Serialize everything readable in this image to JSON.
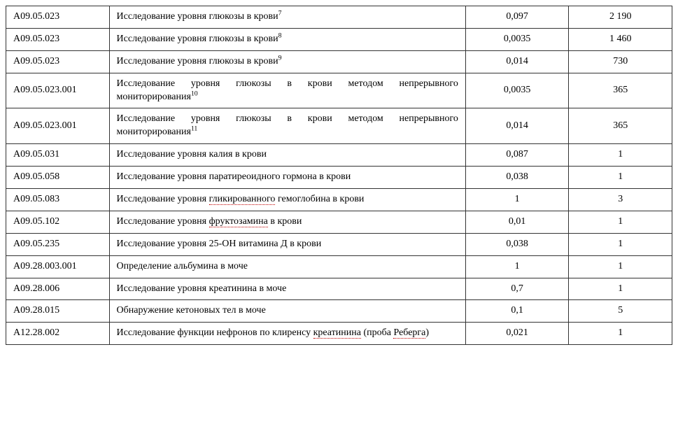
{
  "table": {
    "border_color": "#333333",
    "background_color": "#ffffff",
    "text_color": "#000000",
    "spell_underline_color": "#c00000",
    "font_family": "Times New Roman",
    "font_size_pt": 11,
    "column_widths_pct": [
      15.5,
      53.5,
      15.5,
      15.5
    ],
    "column_align": [
      "left",
      "left",
      "center",
      "center"
    ],
    "rows": [
      {
        "code": "A09.05.023",
        "desc_parts": [
          {
            "t": "Исследование уровня глюкозы в крови"
          },
          {
            "t": "7",
            "sup": true
          }
        ],
        "v1": "0,097",
        "v2": "2 190"
      },
      {
        "code": "A09.05.023",
        "desc_parts": [
          {
            "t": "Исследование уровня глюкозы в крови"
          },
          {
            "t": "8",
            "sup": true
          }
        ],
        "v1": "0,0035",
        "v2": "1 460"
      },
      {
        "code": "A09.05.023",
        "desc_parts": [
          {
            "t": "Исследование уровня глюкозы в крови"
          },
          {
            "t": "9",
            "sup": true
          }
        ],
        "v1": "0,014",
        "v2": "730"
      },
      {
        "code": "A09.05.023.001",
        "desc_parts": [
          {
            "t": "Исследование уровня глюкозы в крови методом непрерывного мониторирования"
          },
          {
            "t": "10",
            "sup": true
          }
        ],
        "justify": true,
        "v1": "0,0035",
        "v2": "365"
      },
      {
        "code": "A09.05.023.001",
        "desc_parts": [
          {
            "t": "Исследование уровня глюкозы в крови методом непрерывного мониторирования"
          },
          {
            "t": "11",
            "sup": true
          }
        ],
        "justify": true,
        "v1": "0,014",
        "v2": "365"
      },
      {
        "code": "A09.05.031",
        "desc_parts": [
          {
            "t": "Исследование уровня калия в крови"
          }
        ],
        "v1": "0,087",
        "v2": "1"
      },
      {
        "code": "A09.05.058",
        "desc_parts": [
          {
            "t": "Исследование уровня паратиреоидного гормона в крови"
          }
        ],
        "v1": "0,038",
        "v2": "1"
      },
      {
        "code": "A09.05.083",
        "desc_parts": [
          {
            "t": "Исследование уровня "
          },
          {
            "t": "гликированного",
            "spell": true
          },
          {
            "t": " гемоглобина в крови"
          }
        ],
        "v1": "1",
        "v2": "3"
      },
      {
        "code": "A09.05.102",
        "desc_parts": [
          {
            "t": "Исследование уровня "
          },
          {
            "t": "фруктозамина",
            "spell": true
          },
          {
            "t": " в крови"
          }
        ],
        "v1": "0,01",
        "v2": "1"
      },
      {
        "code": "A09.05.235",
        "desc_parts": [
          {
            "t": "Исследование уровня 25-ОН витамина Д в крови"
          }
        ],
        "v1": "0,038",
        "v2": "1"
      },
      {
        "code": "A09.28.003.001",
        "desc_parts": [
          {
            "t": "Определение альбумина в моче"
          }
        ],
        "v1": "1",
        "v2": "1"
      },
      {
        "code": "A09.28.006",
        "desc_parts": [
          {
            "t": "Исследование уровня креатинина в моче"
          }
        ],
        "v1": "0,7",
        "v2": "1"
      },
      {
        "code": "A09.28.015",
        "desc_parts": [
          {
            "t": "Обнаружение кетоновых тел в моче"
          }
        ],
        "v1": "0,1",
        "v2": "5"
      },
      {
        "code": "A12.28.002",
        "desc_parts": [
          {
            "t": "Исследование функции нефронов по клиренсу "
          },
          {
            "t": "креатинина",
            "spell": true
          },
          {
            "t": " (проба "
          },
          {
            "t": "Реберга",
            "spell": true
          },
          {
            "t": ")"
          }
        ],
        "justify": true,
        "v1": "0,021",
        "v2": "1"
      }
    ]
  }
}
